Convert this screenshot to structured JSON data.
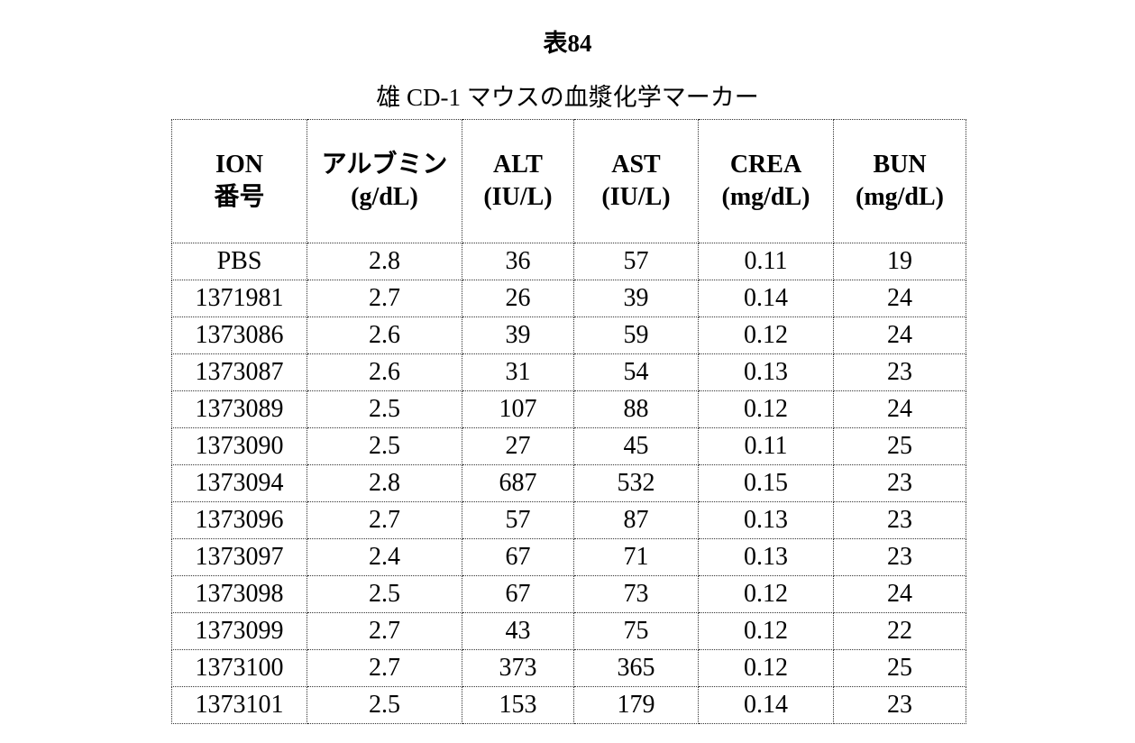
{
  "title": "表84",
  "subtitle": "雄 CD-1 マウスの血漿化学マーカー",
  "table": {
    "headers": [
      {
        "line1": "ION",
        "line2": "番号"
      },
      {
        "line1": "アルブミン",
        "line2": "(g/dL)"
      },
      {
        "line1": "ALT",
        "line2": "(IU/L)"
      },
      {
        "line1": "AST",
        "line2": "(IU/L)"
      },
      {
        "line1": "CREA",
        "line2": "(mg/dL)"
      },
      {
        "line1": "BUN",
        "line2": "(mg/dL)"
      }
    ],
    "rows": [
      [
        "PBS",
        "2.8",
        "36",
        "57",
        "0.11",
        "19"
      ],
      [
        "1371981",
        "2.7",
        "26",
        "39",
        "0.14",
        "24"
      ],
      [
        "1373086",
        "2.6",
        "39",
        "59",
        "0.12",
        "24"
      ],
      [
        "1373087",
        "2.6",
        "31",
        "54",
        "0.13",
        "23"
      ],
      [
        "1373089",
        "2.5",
        "107",
        "88",
        "0.12",
        "24"
      ],
      [
        "1373090",
        "2.5",
        "27",
        "45",
        "0.11",
        "25"
      ],
      [
        "1373094",
        "2.8",
        "687",
        "532",
        "0.15",
        "23"
      ],
      [
        "1373096",
        "2.7",
        "57",
        "87",
        "0.13",
        "23"
      ],
      [
        "1373097",
        "2.4",
        "67",
        "71",
        "0.13",
        "23"
      ],
      [
        "1373098",
        "2.5",
        "67",
        "73",
        "0.12",
        "24"
      ],
      [
        "1373099",
        "2.7",
        "43",
        "75",
        "0.12",
        "22"
      ],
      [
        "1373100",
        "2.7",
        "373",
        "365",
        "0.12",
        "25"
      ],
      [
        "1373101",
        "2.5",
        "153",
        "179",
        "0.14",
        "23"
      ]
    ]
  }
}
